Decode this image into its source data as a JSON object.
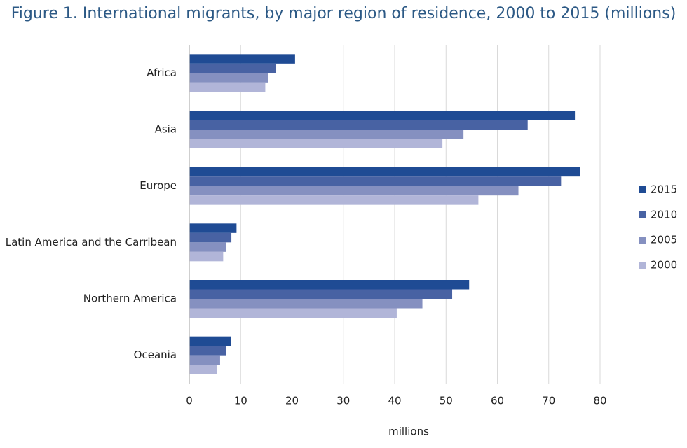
{
  "chart_data": {
    "type": "hbar",
    "title": "Figure 1. International migrants, by major region of residence, 2000 to 2015 (millions)",
    "x_label": "millions",
    "categories": [
      "Africa",
      "Asia",
      "Europe",
      "Latin America and the Carribean",
      "Northern America",
      "Oceania"
    ],
    "series": [
      {
        "name": "2015",
        "color": "#1f4b94",
        "values": [
          20.6,
          75.1,
          76.1,
          9.2,
          54.5,
          8.1
        ]
      },
      {
        "name": "2010",
        "color": "#4862a3",
        "values": [
          16.8,
          65.9,
          72.4,
          8.2,
          51.2,
          7.1
        ]
      },
      {
        "name": "2005",
        "color": "#8590c0",
        "values": [
          15.3,
          53.4,
          64.1,
          7.2,
          45.4,
          6.0
        ]
      },
      {
        "name": "2000",
        "color": "#b1b5d8",
        "values": [
          14.8,
          49.3,
          56.3,
          6.6,
          40.4,
          5.4
        ]
      }
    ],
    "xlim": [
      0,
      80
    ],
    "xticks": [
      0,
      10,
      20,
      30,
      40,
      50,
      60,
      70,
      80
    ],
    "grid": true,
    "legend": "right"
  }
}
